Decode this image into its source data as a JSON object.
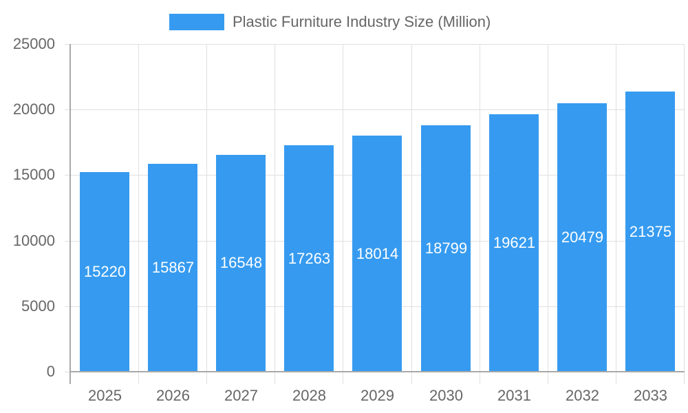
{
  "legend": {
    "label": "Plastic Furniture Industry Size (Million)",
    "color": "#369BF0"
  },
  "y_axis": {
    "ticks": [
      "0",
      "5000",
      "10000",
      "15000",
      "20000",
      "25000"
    ]
  },
  "x_axis": {
    "ticks": [
      "2025",
      "2026",
      "2027",
      "2028",
      "2029",
      "2030",
      "2031",
      "2032",
      "2033"
    ]
  },
  "chart_data": {
    "type": "bar",
    "title": "",
    "xlabel": "",
    "ylabel": "",
    "categories": [
      "2025",
      "2026",
      "2027",
      "2028",
      "2029",
      "2030",
      "2031",
      "2032",
      "2033"
    ],
    "series": [
      {
        "name": "Plastic Furniture Industry Size (Million)",
        "values": [
          15220,
          15867,
          16548,
          17263,
          18014,
          18799,
          19621,
          20479,
          21375
        ],
        "color": "#369BF0"
      }
    ],
    "value_labels": [
      "15220",
      "15867",
      "16548",
      "17263",
      "18014",
      "18799",
      "19621",
      "20479",
      "21375"
    ],
    "ylim": [
      0,
      25000
    ],
    "yticks": [
      0,
      5000,
      10000,
      15000,
      20000,
      25000
    ],
    "grid": true,
    "legend_position": "top"
  }
}
